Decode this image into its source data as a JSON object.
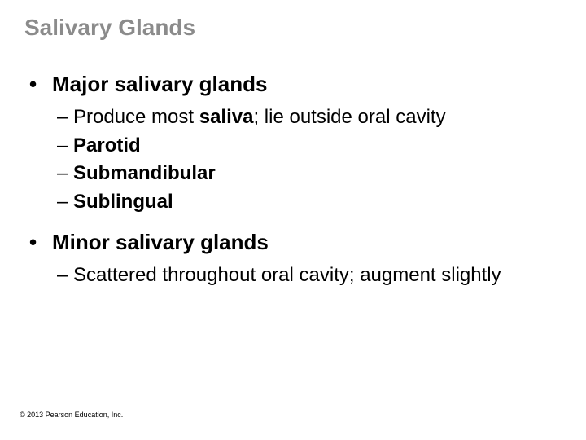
{
  "title": {
    "text": "Salivary Glands",
    "color": "#8b8b8b",
    "fontsize": 28
  },
  "body": {
    "color": "#000000",
    "l1_fontsize": 26,
    "l2_fontsize": 24
  },
  "section1": {
    "heading": "Major salivary glands",
    "items": [
      {
        "pre": "Produce most ",
        "bold": "saliva",
        "post": "; lie outside oral cavity"
      },
      {
        "bold": "Parotid"
      },
      {
        "bold": "Submandibular"
      },
      {
        "bold": "Sublingual"
      }
    ]
  },
  "section2": {
    "heading": "Minor salivary glands",
    "items": [
      {
        "text": "Scattered throughout oral cavity; augment slightly"
      }
    ]
  },
  "copyright": {
    "text": "© 2013 Pearson Education, Inc.",
    "fontsize": 9,
    "color": "#000000"
  }
}
